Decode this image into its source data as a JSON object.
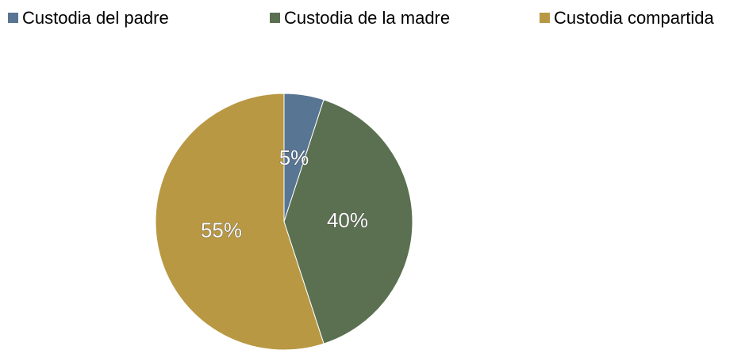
{
  "chart_data": {
    "type": "pie",
    "categories": [
      "Custodia del padre",
      "Custodia de la madre",
      "Custodia compartida"
    ],
    "values": [
      5,
      40,
      55
    ],
    "value_labels": [
      "5%",
      "40%",
      "55%"
    ],
    "colors": [
      "#587593",
      "#5a7050",
      "#b99844"
    ],
    "legend": "top"
  }
}
